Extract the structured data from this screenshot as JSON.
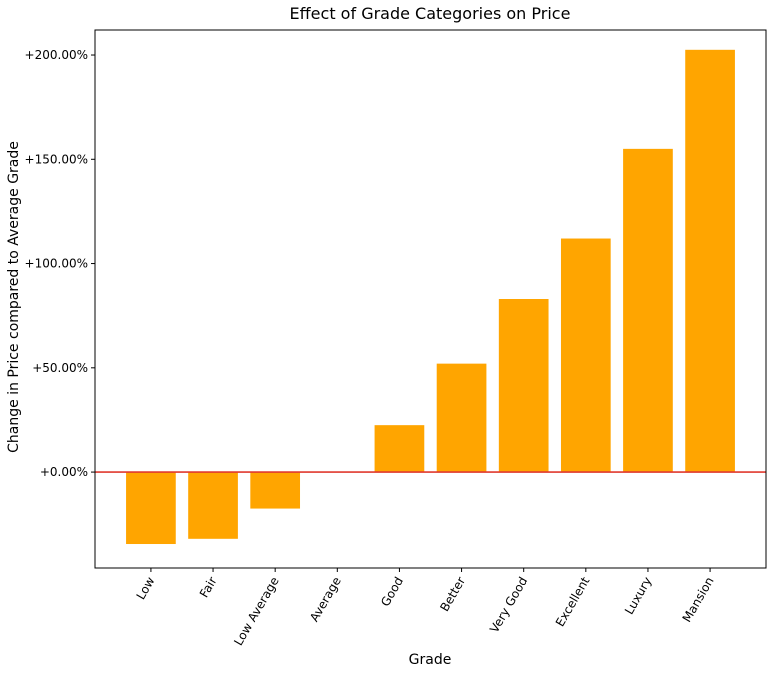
{
  "chart_data": {
    "type": "bar",
    "title": "Effect of Grade Categories on Price",
    "xlabel": "Grade",
    "ylabel": "Change in Price compared to Average Grade",
    "categories": [
      "Low",
      "Fair",
      "Low Average",
      "Average",
      "Good",
      "Better",
      "Very Good",
      "Excellent",
      "Luxury",
      "Mansion"
    ],
    "values": [
      -34.5,
      -32.0,
      -17.5,
      0.0,
      22.5,
      52.0,
      83.0,
      112.0,
      155.0,
      202.5
    ],
    "ylim": [
      -46,
      212
    ],
    "yticks": [
      0,
      50,
      100,
      150,
      200
    ],
    "ytick_labels": [
      "+0.00%",
      "+50.00%",
      "+100.00%",
      "+150.00%",
      "+200.00%"
    ],
    "grid": false,
    "bar_color": "#ffa500",
    "reference_line": {
      "value": 0,
      "color": "#e03a2f"
    }
  }
}
